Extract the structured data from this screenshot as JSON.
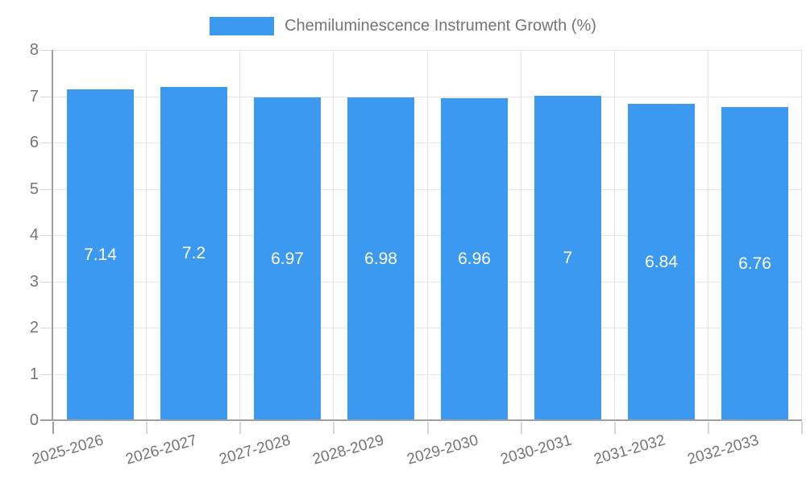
{
  "chart_data": {
    "type": "bar",
    "title": "Chemiluminescence Instrument Growth (%)",
    "categories": [
      "2025-2026",
      "2026-2027",
      "2027-2028",
      "2028-2029",
      "2029-2030",
      "2030-2031",
      "2031-2032",
      "2032-2033"
    ],
    "values": [
      7.14,
      7.2,
      6.97,
      6.98,
      6.96,
      7,
      6.84,
      6.76
    ],
    "value_labels": [
      "7.14",
      "7.2",
      "6.97",
      "6.98",
      "6.96",
      "7",
      "6.84",
      "6.76"
    ],
    "xlabel": "",
    "ylabel": "",
    "ylim": [
      0,
      8
    ],
    "y_ticks": [
      0,
      1,
      2,
      3,
      4,
      5,
      6,
      7,
      8
    ],
    "grid": true,
    "legend_position": "top",
    "colors": {
      "bar": "#3b99f0",
      "bar_value_label": "#ffffff",
      "axis_line": "#a0a0a0",
      "grid_line": "#e5e5e5",
      "tick_mark": "#d6d6d6",
      "tick_text": "#757575",
      "background": "#ffffff"
    }
  }
}
